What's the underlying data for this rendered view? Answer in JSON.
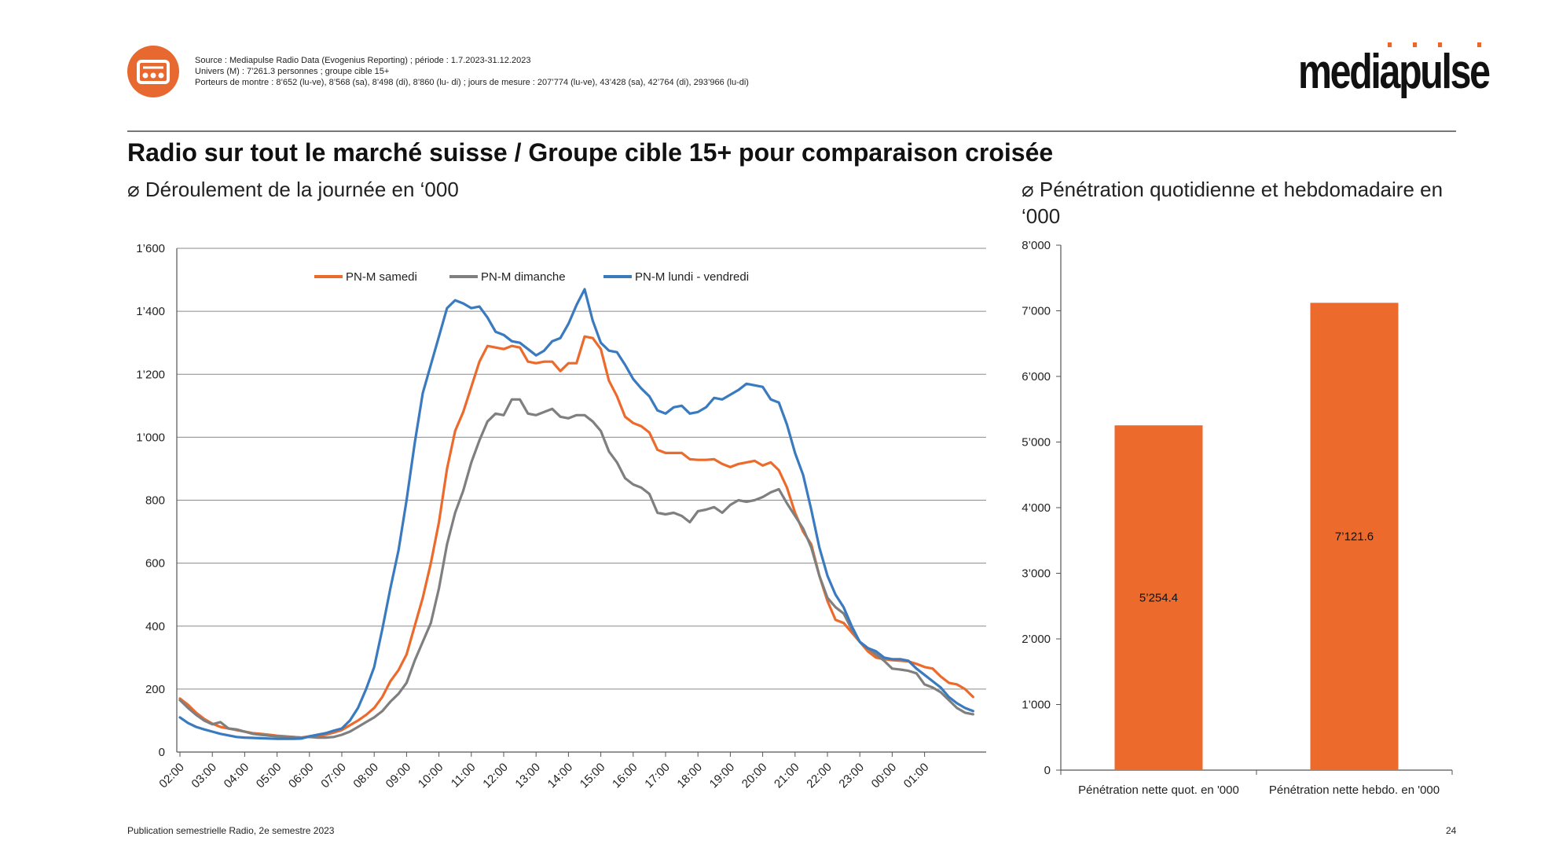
{
  "header": {
    "source_lines": [
      "Source : Mediapulse Radio Data (Evogenius Reporting) ; période : 1.7.2023-31.12.2023",
      "Univers (M) : 7’261.3 personnes ; groupe cible 15+",
      "Porteurs de montre : 8’652 (lu-ve), 8’568 (sa), 8’498 (di), 8’860 (lu- di) ; jours de mesure : 207’774 (lu-ve), 43’428 (sa), 42’764 (di), 293’966 (lu-di)"
    ],
    "logo_text": "mediapulse",
    "title": "Radio sur tout le marché suisse / Groupe cible 15+ pour comparaison croisée",
    "subtitle_left": "⌀ Déroulement de la journée en ‘000",
    "subtitle_right": "⌀ Pénétration quotidienne et hebdomadaire en ‘000"
  },
  "footer": {
    "publication": "Publication semestrielle Radio, 2e semestre 2023",
    "page_number": "24"
  },
  "colors": {
    "samedi": "#ec6a2c",
    "dimanche": "#7f7f7f",
    "lundi_vendredi": "#3a7abf",
    "bar": "#ec6a2c",
    "brand": "#e8692f"
  },
  "chart_data": [
    {
      "type": "line",
      "title": "Déroulement de la journée en ‘000",
      "xlabel": "",
      "ylabel": "",
      "ylim": [
        0,
        1600
      ],
      "yticks": [
        0,
        200,
        400,
        600,
        800,
        1000,
        1200,
        1400,
        1600
      ],
      "ytick_labels": [
        "0",
        "200",
        "400",
        "600",
        "800",
        "1’000",
        "1’200",
        "1’400",
        "1’600"
      ],
      "xtick_labels": [
        "02:00",
        "03:00",
        "04:00",
        "05:00",
        "06:00",
        "07:00",
        "08:00",
        "09:00",
        "10:00",
        "11:00",
        "12:00",
        "13:00",
        "14:00",
        "15:00",
        "16:00",
        "17:00",
        "18:00",
        "19:00",
        "20:00",
        "21:00",
        "22:00",
        "23:00",
        "00:00",
        "01:00"
      ],
      "points_per_hour": 4,
      "grid": true,
      "legend_position": "top-center",
      "series": [
        {
          "name": "PN-M samedi",
          "color_key": "samedi",
          "values": [
            170,
            150,
            125,
            105,
            90,
            80,
            75,
            70,
            65,
            60,
            58,
            55,
            52,
            50,
            48,
            46,
            50,
            52,
            55,
            62,
            70,
            85,
            100,
            118,
            140,
            175,
            225,
            260,
            310,
            400,
            490,
            600,
            730,
            900,
            1020,
            1080,
            1160,
            1240,
            1290,
            1285,
            1280,
            1290,
            1285,
            1240,
            1235,
            1240,
            1240,
            1210,
            1235,
            1235,
            1320,
            1315,
            1280,
            1180,
            1130,
            1065,
            1045,
            1035,
            1015,
            960,
            950,
            950,
            950,
            930,
            928,
            928,
            930,
            915,
            905,
            915,
            920,
            925,
            910,
            920,
            895,
            840,
            760,
            700,
            660,
            560,
            480,
            420,
            410,
            380,
            350,
            320,
            300,
            295,
            292,
            290,
            288,
            280,
            270,
            265,
            240,
            220,
            215,
            200,
            175
          ]
        },
        {
          "name": "PN-M dimanche",
          "color_key": "dimanche",
          "values": [
            165,
            140,
            118,
            100,
            88,
            95,
            75,
            72,
            65,
            58,
            55,
            52,
            50,
            48,
            48,
            46,
            48,
            46,
            46,
            48,
            55,
            65,
            80,
            95,
            110,
            130,
            160,
            185,
            220,
            290,
            350,
            410,
            520,
            660,
            760,
            830,
            920,
            990,
            1050,
            1075,
            1070,
            1120,
            1120,
            1075,
            1070,
            1080,
            1090,
            1065,
            1060,
            1070,
            1070,
            1050,
            1020,
            955,
            920,
            870,
            850,
            840,
            820,
            760,
            755,
            760,
            750,
            730,
            765,
            770,
            778,
            760,
            785,
            800,
            795,
            800,
            810,
            825,
            835,
            790,
            750,
            710,
            650,
            560,
            490,
            460,
            440,
            390,
            350,
            330,
            310,
            290,
            265,
            262,
            258,
            250,
            215,
            205,
            190,
            165,
            140,
            125,
            120
          ]
        },
        {
          "name": "PN-M lundi - vendredi",
          "color_key": "lundi_vendredi",
          "values": [
            110,
            92,
            80,
            72,
            65,
            58,
            53,
            48,
            46,
            45,
            44,
            43,
            42,
            42,
            42,
            43,
            50,
            55,
            60,
            68,
            75,
            100,
            140,
            200,
            270,
            390,
            520,
            640,
            800,
            980,
            1140,
            1230,
            1320,
            1410,
            1435,
            1425,
            1410,
            1415,
            1380,
            1335,
            1325,
            1305,
            1300,
            1280,
            1260,
            1275,
            1305,
            1315,
            1360,
            1420,
            1470,
            1370,
            1300,
            1275,
            1270,
            1230,
            1185,
            1155,
            1130,
            1085,
            1075,
            1095,
            1100,
            1075,
            1080,
            1095,
            1125,
            1120,
            1135,
            1150,
            1170,
            1165,
            1160,
            1120,
            1110,
            1040,
            950,
            880,
            770,
            650,
            560,
            500,
            460,
            400,
            350,
            330,
            320,
            300,
            295,
            295,
            290,
            265,
            245,
            225,
            205,
            175,
            155,
            140,
            130
          ]
        }
      ]
    },
    {
      "type": "bar",
      "title": "Pénétration quotidienne et hebdomadaire en ‘000",
      "categories": [
        "Pénétration nette quot. en '000",
        "Pénétration nette hebdo. en '000"
      ],
      "values": [
        5254.4,
        7121.6
      ],
      "value_labels": [
        "5’254.4",
        "7’121.6"
      ],
      "ylim": [
        0,
        8000
      ],
      "yticks": [
        0,
        1000,
        2000,
        3000,
        4000,
        5000,
        6000,
        7000,
        8000
      ],
      "ytick_labels": [
        "0",
        "1’000",
        "2’000",
        "3’000",
        "4’000",
        "5’000",
        "6’000",
        "7’000",
        "8’000"
      ],
      "grid": false
    }
  ]
}
